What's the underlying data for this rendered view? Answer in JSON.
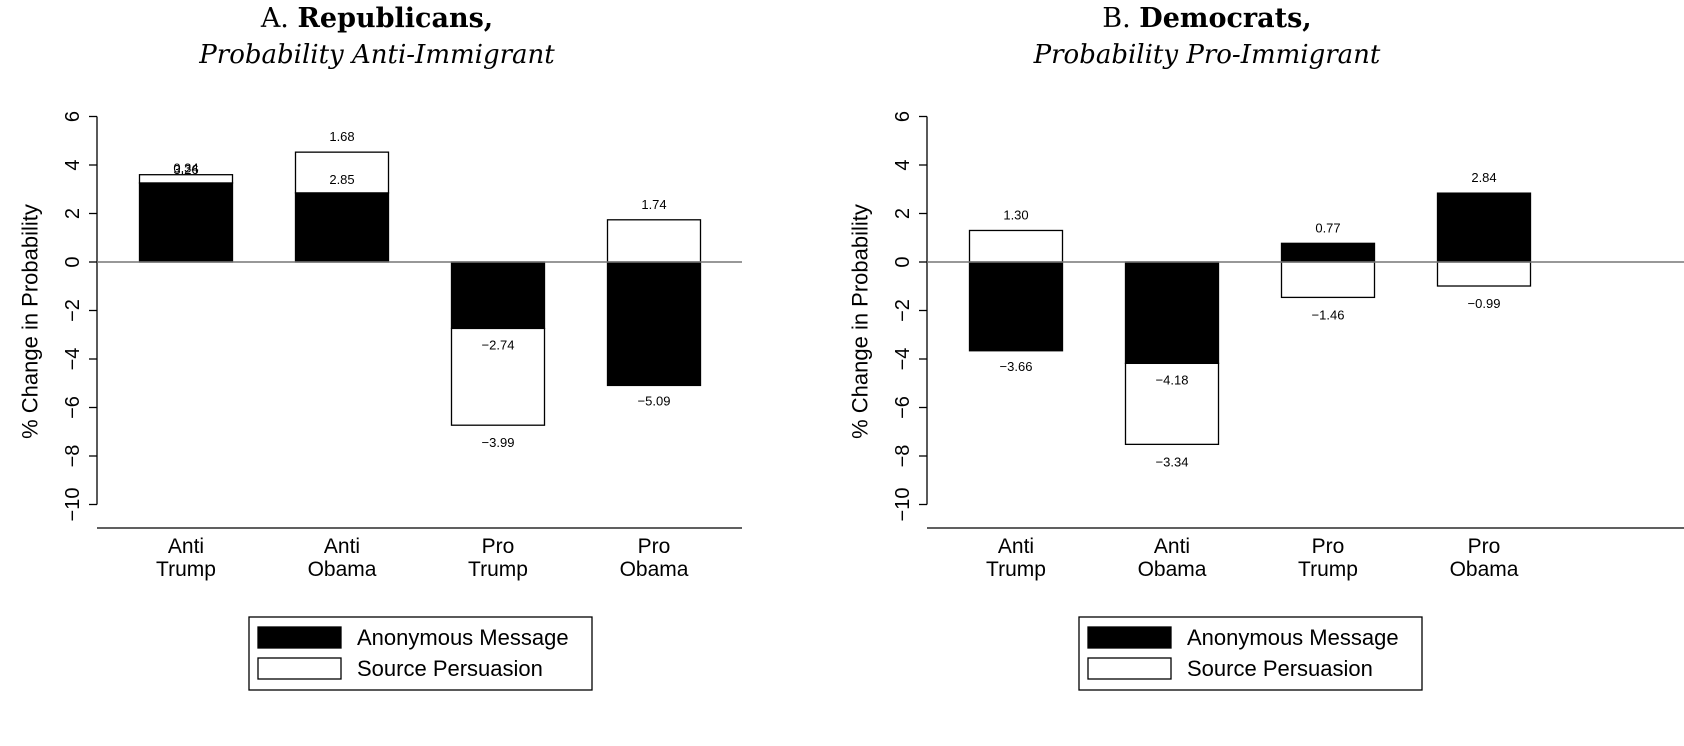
{
  "chart_data": [
    {
      "type": "bar",
      "stacked": true,
      "title_prefix": "A.",
      "title": "Republicans,",
      "subtitle": "Probability Anti-Immigrant",
      "xlabel": "",
      "ylabel": "% Change in Probability",
      "ylim": [
        -11,
        6.9
      ],
      "yticks": [
        6,
        4,
        2,
        0,
        -2,
        -4,
        -6,
        -8,
        -10
      ],
      "ytick_labels": [
        "6",
        "4",
        "2",
        "0",
        "−2",
        "−4",
        "−6",
        "−8",
        "−10"
      ],
      "categories": [
        [
          "Anti",
          "Trump"
        ],
        [
          "Anti",
          "Obama"
        ],
        [
          "Pro",
          "Trump"
        ],
        [
          "Pro",
          "Obama"
        ]
      ],
      "series": [
        {
          "name": "Anonymous Message",
          "color": "#000000",
          "values": [
            3.26,
            2.85,
            -2.74,
            -5.09
          ],
          "labels": [
            "3.26",
            "2.85",
            "−2.74",
            "−5.09"
          ]
        },
        {
          "name": "Source Persuasion",
          "color": "#ffffff",
          "values": [
            0.34,
            1.68,
            -3.99,
            1.74
          ],
          "labels": [
            "0.34",
            "1.68",
            "−3.99",
            "1.74"
          ]
        }
      ],
      "legend": [
        "Anonymous Message",
        "Source Persuasion"
      ],
      "legend_position": "bottom",
      "grid": false
    },
    {
      "type": "bar",
      "stacked": true,
      "title_prefix": "B.",
      "title": "Democrats,",
      "subtitle": "Probability Pro-Immigrant",
      "xlabel": "",
      "ylabel": "% Change in Probability",
      "ylim": [
        -11,
        6.9
      ],
      "yticks": [
        6,
        4,
        2,
        0,
        -2,
        -4,
        -6,
        -8,
        -10
      ],
      "ytick_labels": [
        "6",
        "4",
        "2",
        "0",
        "−2",
        "−4",
        "−6",
        "−8",
        "−10"
      ],
      "categories": [
        [
          "Anti",
          "Trump"
        ],
        [
          "Anti",
          "Obama"
        ],
        [
          "Pro",
          "Trump"
        ],
        [
          "Pro",
          "Obama"
        ]
      ],
      "series": [
        {
          "name": "Anonymous Message",
          "color": "#000000",
          "values": [
            -3.66,
            -4.18,
            0.77,
            2.84
          ],
          "labels": [
            "−3.66",
            "−4.18",
            "0.77",
            "2.84"
          ]
        },
        {
          "name": "Source Persuasion",
          "color": "#ffffff",
          "values": [
            1.3,
            -3.34,
            -1.46,
            -0.99
          ],
          "labels": [
            "1.30",
            "−3.34",
            "−1.46",
            "−0.99"
          ]
        }
      ],
      "legend": [
        "Anonymous Message",
        "Source Persuasion"
      ],
      "legend_position": "bottom",
      "grid": false
    }
  ]
}
